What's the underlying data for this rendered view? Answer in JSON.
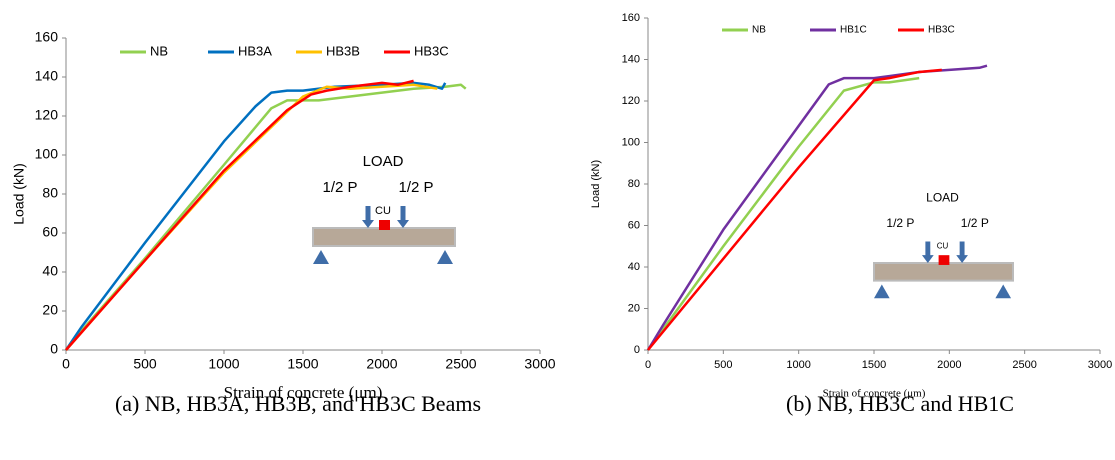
{
  "chart_data": [
    {
      "type": "line",
      "caption": "(a)  NB, HB3A, HB3B, and HB3C Beams",
      "ylabel": "Load  (kN)",
      "xlabel": "Strain of concrete (μm)",
      "xlim": [
        0,
        3000
      ],
      "xticks": [
        0,
        500,
        1000,
        1500,
        2000,
        2500,
        3000
      ],
      "ylim": [
        0,
        160
      ],
      "yticks": [
        0,
        20,
        40,
        60,
        80,
        100,
        120,
        140,
        160
      ],
      "grid": false,
      "legend": "top",
      "annotations": [
        "LOAD",
        "1/2 P",
        "1/2 P",
        "CU"
      ],
      "series": [
        {
          "name": "NB",
          "color": "#92d050",
          "x": [
            0,
            100,
            500,
            1000,
            1300,
            1400,
            1600,
            1800,
            2000,
            2200,
            2400,
            2500,
            2530
          ],
          "values": [
            0,
            10,
            47,
            95,
            124,
            128,
            128,
            130,
            132,
            134,
            135,
            136,
            134
          ]
        },
        {
          "name": "HB3A",
          "color": "#0070c0",
          "x": [
            0,
            100,
            500,
            1000,
            1200,
            1300,
            1400,
            1500,
            1700,
            2000,
            2200,
            2300,
            2380,
            2400
          ],
          "values": [
            0,
            12,
            55,
            107,
            125,
            132,
            133,
            133,
            135,
            136,
            137,
            136,
            134,
            137
          ]
        },
        {
          "name": "HB3B",
          "color": "#ffc000",
          "x": [
            0,
            500,
            1000,
            1500,
            1650,
            1800,
            2000,
            2200,
            2350
          ],
          "values": [
            0,
            46,
            91,
            130,
            135,
            134,
            135,
            136,
            134
          ]
        },
        {
          "name": "HB3C",
          "color": "#ff0000",
          "x": [
            0,
            500,
            1000,
            1400,
            1550,
            1650,
            1800,
            2000,
            2100,
            2200
          ],
          "values": [
            0,
            46,
            92,
            123,
            131,
            133,
            135,
            137,
            136,
            138
          ]
        }
      ]
    },
    {
      "type": "line",
      "caption": "(b) NB, HB3C and HB1C",
      "ylabel": "Load    (kN)",
      "xlabel": "Strain of concrete    (μm)",
      "xlim": [
        0,
        3000
      ],
      "xticks": [
        0,
        500,
        1000,
        1500,
        2000,
        2500,
        3000
      ],
      "ylim": [
        0,
        160
      ],
      "yticks": [
        0,
        20,
        40,
        60,
        80,
        100,
        120,
        140,
        160
      ],
      "grid": false,
      "legend": "top",
      "annotations": [
        "LOAD",
        "1/2 P",
        "1/2 P",
        "CU"
      ],
      "series": [
        {
          "name": "NB",
          "color": "#92d050",
          "x": [
            0,
            500,
            1000,
            1300,
            1500,
            1600,
            1800
          ],
          "values": [
            0,
            50,
            98,
            125,
            129,
            129,
            131
          ]
        },
        {
          "name": "HB1C",
          "color": "#7030a0",
          "x": [
            0,
            100,
            500,
            1000,
            1200,
            1300,
            1500,
            1800,
            2000,
            2200,
            2250
          ],
          "values": [
            0,
            12,
            58,
            108,
            128,
            131,
            131,
            134,
            135,
            136,
            137
          ]
        },
        {
          "name": "HB3C",
          "color": "#ff0000",
          "x": [
            0,
            500,
            1000,
            1500,
            1600,
            1800,
            1950
          ],
          "values": [
            0,
            44,
            88,
            130,
            131,
            134,
            135
          ]
        }
      ]
    }
  ]
}
